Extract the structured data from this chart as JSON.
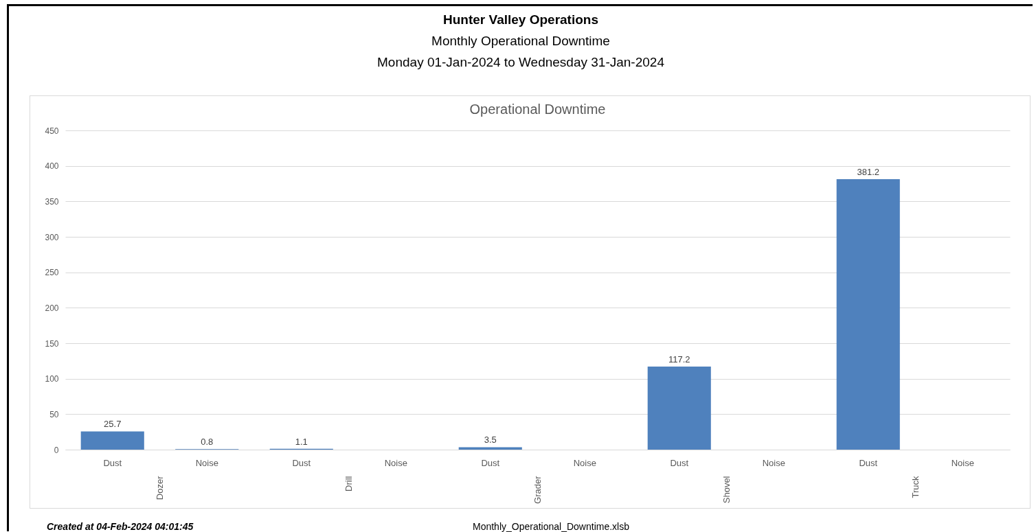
{
  "chart_data": {
    "type": "bar",
    "title": "Operational Downtime",
    "annotations": [
      "Hunter Valley Operations",
      "Monthly Operational Downtime",
      "Monday 01-Jan-2024 to Wednesday 31-Jan-2024",
      "Created at 04-Feb-2024 04:01:45",
      "Monthly_Operational_Downtime.xlsb"
    ],
    "categories": [
      "Dozer",
      "Drill",
      "Grader",
      "Shovel",
      "Truck"
    ],
    "series": [
      {
        "name": "Dust",
        "color": "#4f81bd",
        "values": [
          25.7,
          1.1,
          3.5,
          117.2,
          381.2
        ]
      },
      {
        "name": "Noise",
        "color": "#4f81bd",
        "values": [
          0.8,
          null,
          null,
          null,
          null
        ]
      }
    ],
    "ylim": [
      0,
      450
    ],
    "yticks": [
      0,
      50,
      100,
      150,
      200,
      250,
      300,
      350,
      400,
      450
    ],
    "grid": "y",
    "data_labels": true,
    "legend": false
  }
}
